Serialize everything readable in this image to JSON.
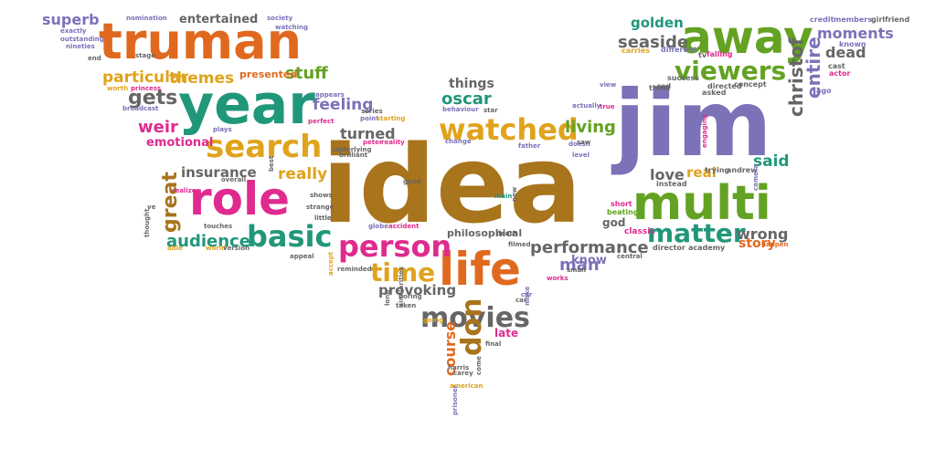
{
  "words": [
    {
      "text": "idea",
      "color": "#a8741c"
    },
    {
      "text": "jim",
      "color": "#7b72b8"
    },
    {
      "text": "truman",
      "color": "#e0691f"
    },
    {
      "text": "year",
      "color": "#21977a"
    },
    {
      "text": "away",
      "color": "#63a222"
    },
    {
      "text": "multi",
      "color": "#63a222"
    },
    {
      "text": "role",
      "color": "#df2b8e"
    },
    {
      "text": "life",
      "color": "#e0691f"
    },
    {
      "text": "search",
      "color": "#e0a31c"
    },
    {
      "text": "watched",
      "color": "#e0a31c"
    },
    {
      "text": "basic",
      "color": "#21977a"
    },
    {
      "text": "person",
      "color": "#df2b8e"
    },
    {
      "text": "movies",
      "color": "#666666"
    },
    {
      "text": "time",
      "color": "#e0a31c"
    },
    {
      "text": "viewers",
      "color": "#63a222"
    },
    {
      "text": "matter",
      "color": "#21977a"
    },
    {
      "text": "great",
      "color": "#a8741c"
    },
    {
      "text": "performance",
      "color": "#666666"
    },
    {
      "text": "christof",
      "color": "#666666"
    },
    {
      "text": "entire",
      "color": "#7b72b8"
    },
    {
      "text": "don",
      "color": "#a8741c"
    },
    {
      "text": "themes",
      "color": "#e0a31c"
    },
    {
      "text": "particular",
      "color": "#e0a31c"
    },
    {
      "text": "gets",
      "color": "#666666"
    },
    {
      "text": "insurance",
      "color": "#666666"
    },
    {
      "text": "audience",
      "color": "#21977a"
    },
    {
      "text": "really",
      "color": "#e0a31c"
    },
    {
      "text": "turned",
      "color": "#666666"
    },
    {
      "text": "living",
      "color": "#63a222"
    },
    {
      "text": "seaside",
      "color": "#666666"
    },
    {
      "text": "moments",
      "color": "#7b72b8"
    },
    {
      "text": "dead",
      "color": "#666666"
    },
    {
      "text": "golden",
      "color": "#21977a"
    },
    {
      "text": "love",
      "color": "#666666"
    },
    {
      "text": "said",
      "color": "#21977a"
    },
    {
      "text": "wrong",
      "color": "#666666"
    },
    {
      "text": "oscar",
      "color": "#21977a"
    },
    {
      "text": "things",
      "color": "#666666"
    },
    {
      "text": "weir",
      "color": "#df2b8e"
    },
    {
      "text": "feeling",
      "color": "#7b72b8"
    },
    {
      "text": "stuff",
      "color": "#63a222"
    },
    {
      "text": "man",
      "color": "#7b72b8"
    },
    {
      "text": "story",
      "color": "#e0691f"
    },
    {
      "text": "superb",
      "color": "#7b72b8"
    },
    {
      "text": "entertained",
      "color": "#666666"
    },
    {
      "text": "emotional",
      "color": "#df2b8e"
    },
    {
      "text": "provoking",
      "color": "#666666"
    },
    {
      "text": "course",
      "color": "#e0691f"
    },
    {
      "text": "real",
      "color": "#e0a31c"
    },
    {
      "text": "know",
      "color": "#7b72b8"
    },
    {
      "text": "philosophical",
      "color": "#666666"
    },
    {
      "text": "presented",
      "color": "#e0691f"
    },
    {
      "text": "late",
      "color": "#df2b8e"
    },
    {
      "text": "god",
      "color": "#666666"
    },
    {
      "text": "director",
      "color": "#666666"
    },
    {
      "text": "academy",
      "color": "#666666"
    },
    {
      "text": "andrew",
      "color": "#666666"
    },
    {
      "text": "trying",
      "color": "#666666"
    },
    {
      "text": "instead",
      "color": "#666666"
    },
    {
      "text": "short",
      "color": "#df2b8e"
    },
    {
      "text": "beating",
      "color": "#63a222"
    },
    {
      "text": "classic",
      "color": "#df2b8e"
    },
    {
      "text": "tv",
      "color": "#666666"
    },
    {
      "text": "falling",
      "color": "#df2b8e"
    },
    {
      "text": "success",
      "color": "#666666"
    },
    {
      "text": "directed",
      "color": "#666666"
    },
    {
      "text": "concept",
      "color": "#666666"
    },
    {
      "text": "carries",
      "color": "#e0a31c"
    },
    {
      "text": "different",
      "color": "#7b72b8"
    },
    {
      "text": "credit",
      "color": "#7b72b8"
    },
    {
      "text": "members",
      "color": "#7b72b8"
    },
    {
      "text": "girlfriend",
      "color": "#666666"
    },
    {
      "text": "known",
      "color": "#7b72b8"
    },
    {
      "text": "cast",
      "color": "#666666"
    },
    {
      "text": "actor",
      "color": "#df2b8e"
    },
    {
      "text": "ago",
      "color": "#7b72b8"
    },
    {
      "text": "nomination",
      "color": "#7b72b8"
    },
    {
      "text": "society",
      "color": "#7b72b8"
    },
    {
      "text": "watching",
      "color": "#7b72b8"
    },
    {
      "text": "exactly",
      "color": "#7b72b8"
    },
    {
      "text": "outstanding",
      "color": "#7b72b8"
    },
    {
      "text": "nineties",
      "color": "#7b72b8"
    },
    {
      "text": "stage",
      "color": "#666666"
    },
    {
      "text": "end",
      "color": "#666666"
    },
    {
      "text": "worth",
      "color": "#e0a31c"
    },
    {
      "text": "princess",
      "color": "#df2b8e"
    },
    {
      "text": "broadcast",
      "color": "#7b72b8"
    },
    {
      "text": "plays",
      "color": "#7b72b8"
    },
    {
      "text": "appears",
      "color": "#7b72b8"
    },
    {
      "text": "perfect",
      "color": "#df2b8e"
    },
    {
      "text": "series",
      "color": "#666666"
    },
    {
      "text": "point",
      "color": "#7b72b8"
    },
    {
      "text": "starting",
      "color": "#e0a31c"
    },
    {
      "text": "behaviour",
      "color": "#7b72b8"
    },
    {
      "text": "star",
      "color": "#666666"
    },
    {
      "text": "change",
      "color": "#7b72b8"
    },
    {
      "text": "peter",
      "color": "#df2b8e"
    },
    {
      "text": "reality",
      "color": "#df2b8e"
    },
    {
      "text": "underlying",
      "color": "#666666"
    },
    {
      "text": "brilliant",
      "color": "#666666"
    },
    {
      "text": "father",
      "color": "#7b72b8"
    },
    {
      "text": "doesn",
      "color": "#7b72b8"
    },
    {
      "text": "level",
      "color": "#7b72b8"
    },
    {
      "text": "saw",
      "color": "#666666"
    },
    {
      "text": "true",
      "color": "#df2b8e"
    },
    {
      "text": "actually",
      "color": "#7b72b8"
    },
    {
      "text": "view",
      "color": "#7b72b8"
    },
    {
      "text": "think",
      "color": "#666666"
    },
    {
      "text": "red",
      "color": "#666666"
    },
    {
      "text": "asked",
      "color": "#666666"
    },
    {
      "text": "ve",
      "color": "#666666"
    },
    {
      "text": "thought",
      "color": "#666666"
    },
    {
      "text": "able",
      "color": "#e0a31c"
    },
    {
      "text": "touches",
      "color": "#666666"
    },
    {
      "text": "world",
      "color": "#e0a31c"
    },
    {
      "text": "version",
      "color": "#666666"
    },
    {
      "text": "realizes",
      "color": "#df2b8e"
    },
    {
      "text": "overall",
      "color": "#666666"
    },
    {
      "text": "best",
      "color": "#666666"
    },
    {
      "text": "strange",
      "color": "#666666"
    },
    {
      "text": "shows",
      "color": "#666666"
    },
    {
      "text": "little",
      "color": "#666666"
    },
    {
      "text": "appeal",
      "color": "#666666"
    },
    {
      "text": "accept",
      "color": "#e0a31c"
    },
    {
      "text": "reminded",
      "color": "#666666"
    },
    {
      "text": "good",
      "color": "#666666"
    },
    {
      "text": "main",
      "color": "#21977a"
    },
    {
      "text": "new",
      "color": "#666666"
    },
    {
      "text": "globe",
      "color": "#7b72b8"
    },
    {
      "text": "accident",
      "color": "#df2b8e"
    },
    {
      "text": "death",
      "color": "#666666"
    },
    {
      "text": "filmed",
      "color": "#666666"
    },
    {
      "text": "long",
      "color": "#666666"
    },
    {
      "text": "boring",
      "color": "#666666"
    },
    {
      "text": "similarities",
      "color": "#666666"
    },
    {
      "text": "taken",
      "color": "#666666"
    },
    {
      "text": "going",
      "color": "#e0a31c"
    },
    {
      "text": "car",
      "color": "#666666"
    },
    {
      "text": "make",
      "color": "#7b72b8"
    },
    {
      "text": "works",
      "color": "#df2b8e"
    },
    {
      "text": "small",
      "color": "#666666"
    },
    {
      "text": "central",
      "color": "#666666"
    },
    {
      "text": "final",
      "color": "#666666"
    },
    {
      "text": "harris",
      "color": "#666666"
    },
    {
      "text": "carey",
      "color": "#666666"
    },
    {
      "text": "come",
      "color": "#666666"
    },
    {
      "text": "american",
      "color": "#e0a31c"
    },
    {
      "text": "prisoner",
      "color": "#7b72b8"
    },
    {
      "text": "happen",
      "color": "#e0691f"
    },
    {
      "text": "camera",
      "color": "#7b72b8"
    },
    {
      "text": "engaging",
      "color": "#df2b8e"
    },
    {
      "text": "car",
      "color": "#7b72b8"
    }
  ]
}
